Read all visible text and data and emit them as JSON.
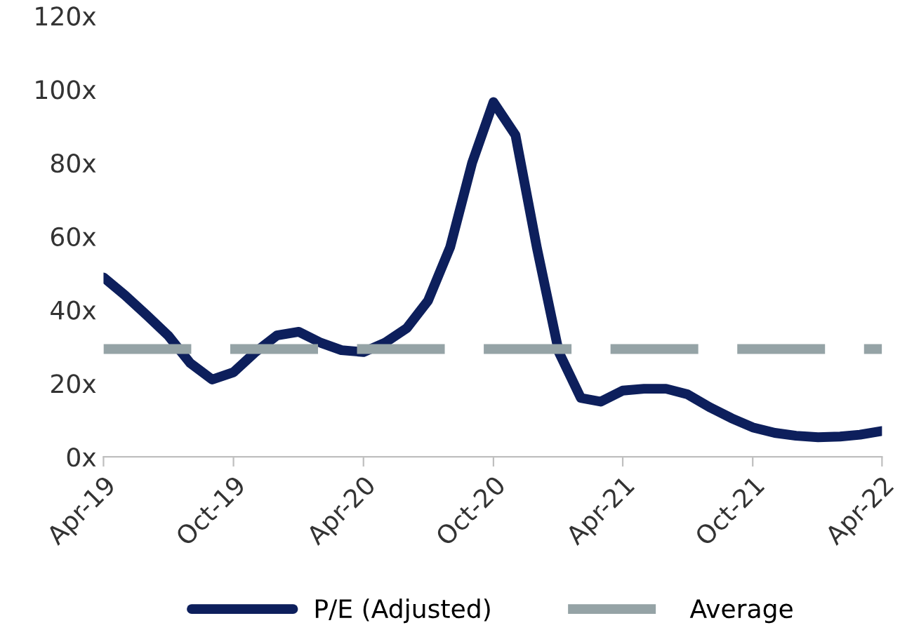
{
  "chart_data": {
    "type": "line",
    "x": [
      "2019-04",
      "2019-05",
      "2019-06",
      "2019-07",
      "2019-08",
      "2019-09",
      "2019-10",
      "2019-11",
      "2019-12",
      "2020-01",
      "2020-02",
      "2020-03",
      "2020-04",
      "2020-05",
      "2020-06",
      "2020-07",
      "2020-08",
      "2020-09",
      "2020-10",
      "2020-11",
      "2020-12",
      "2021-01",
      "2021-02",
      "2021-03",
      "2021-04",
      "2021-05",
      "2021-06",
      "2021-07",
      "2021-08",
      "2021-09",
      "2021-10",
      "2021-11",
      "2021-12",
      "2022-01",
      "2022-02",
      "2022-03",
      "2022-04"
    ],
    "series": [
      {
        "name": "P/E (Adjusted)",
        "color": "#0d1f5c",
        "line_style": "solid",
        "values": [
          48.8,
          44,
          38.5,
          33,
          25.5,
          21,
          23,
          28.5,
          33,
          34,
          31,
          29,
          28.5,
          31,
          35,
          42.5,
          57,
          80,
          96.5,
          87.5,
          57,
          28.5,
          16,
          15,
          18,
          18.5,
          18.5,
          17,
          13.5,
          10.5,
          8,
          6.5,
          5.7,
          5.3,
          5.5,
          6,
          7
        ]
      },
      {
        "name": "Average",
        "color": "#95a3a6",
        "line_style": "dashed",
        "values": [
          29.3,
          29.3,
          29.3,
          29.3,
          29.3,
          29.3,
          29.3,
          29.3,
          29.3,
          29.3,
          29.3,
          29.3,
          29.3,
          29.3,
          29.3,
          29.3,
          29.3,
          29.3,
          29.3,
          29.3,
          29.3,
          29.3,
          29.3,
          29.3,
          29.3,
          29.3,
          29.3,
          29.3,
          29.3,
          29.3,
          29.3,
          29.3,
          29.3,
          29.3,
          29.3,
          29.3,
          29.3
        ]
      }
    ],
    "xlim": [
      "2019-04",
      "2022-04"
    ],
    "xticks": [
      {
        "value": "2019-04",
        "label": "Apr-19"
      },
      {
        "value": "2019-10",
        "label": "Oct-19"
      },
      {
        "value": "2020-04",
        "label": "Apr-20"
      },
      {
        "value": "2020-10",
        "label": "Oct-20"
      },
      {
        "value": "2021-04",
        "label": "Apr-21"
      },
      {
        "value": "2021-10",
        "label": "Oct-21"
      },
      {
        "value": "2022-04",
        "label": "Apr-22"
      }
    ],
    "ylim": [
      0,
      120
    ],
    "yticks": [
      {
        "value": 0,
        "label": "0x"
      },
      {
        "value": 20,
        "label": "20x"
      },
      {
        "value": 40,
        "label": "40x"
      },
      {
        "value": 60,
        "label": "60x"
      },
      {
        "value": 80,
        "label": "80x"
      },
      {
        "value": 100,
        "label": "100x"
      },
      {
        "value": 120,
        "label": "120x"
      }
    ],
    "grid": false,
    "legend": "bottom",
    "marker": "none"
  }
}
